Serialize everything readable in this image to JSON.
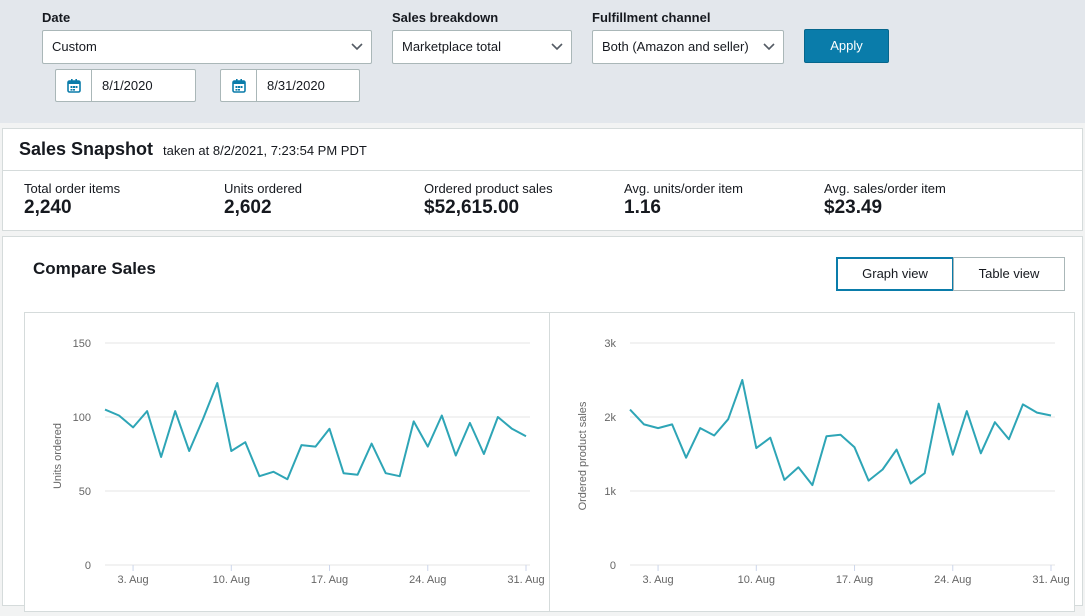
{
  "filters": {
    "date_label": "Date",
    "date_value": "Custom",
    "start_date": "8/1/2020",
    "end_date": "8/31/2020",
    "breakdown_label": "Sales breakdown",
    "breakdown_value": "Marketplace total",
    "channel_label": "Fulfillment channel",
    "channel_value": "Both (Amazon and seller)",
    "apply_label": "Apply"
  },
  "snapshot": {
    "title": "Sales Snapshot",
    "taken": "taken at 8/2/2021, 7:23:54 PM PDT",
    "metrics": [
      {
        "label": "Total order items",
        "value": "2,240"
      },
      {
        "label": "Units ordered",
        "value": "2,602"
      },
      {
        "label": "Ordered product sales",
        "value": "$52,615.00"
      },
      {
        "label": "Avg. units/order item",
        "value": "1.16"
      },
      {
        "label": "Avg. sales/order item",
        "value": "$23.49"
      }
    ]
  },
  "compare": {
    "title": "Compare Sales",
    "graph_view_label": "Graph view",
    "table_view_label": "Table view"
  },
  "chart_data": [
    {
      "type": "line",
      "ylabel": "Units ordered",
      "ylim": [
        0,
        150
      ],
      "yticks": [
        0,
        50,
        100,
        150
      ],
      "ytick_labels": [
        "0",
        "50",
        "100",
        "150"
      ],
      "xtick_days": [
        3,
        10,
        17,
        24,
        31
      ],
      "xtick_labels": [
        "3. Aug",
        "10. Aug",
        "17. Aug",
        "24. Aug",
        "31. Aug"
      ],
      "grid": true,
      "color": "#2ea5b6",
      "x": [
        1,
        2,
        3,
        4,
        5,
        6,
        7,
        8,
        9,
        10,
        11,
        12,
        13,
        14,
        15,
        16,
        17,
        18,
        19,
        20,
        21,
        22,
        23,
        24,
        25,
        26,
        27,
        28,
        29,
        30,
        31
      ],
      "values": [
        105,
        101,
        93,
        104,
        73,
        104,
        77,
        99,
        123,
        77,
        83,
        60,
        63,
        58,
        81,
        80,
        92,
        62,
        61,
        82,
        62,
        60,
        97,
        80,
        101,
        74,
        96,
        75,
        100,
        92,
        87
      ]
    },
    {
      "type": "line",
      "ylabel": "Ordered product sales",
      "ylim": [
        0,
        3000
      ],
      "yticks": [
        0,
        1000,
        2000,
        3000
      ],
      "ytick_labels": [
        "0",
        "1k",
        "2k",
        "3k"
      ],
      "xtick_days": [
        3,
        10,
        17,
        24,
        31
      ],
      "xtick_labels": [
        "3. Aug",
        "10. Aug",
        "17. Aug",
        "24. Aug",
        "31. Aug"
      ],
      "grid": true,
      "color": "#2ea5b6",
      "x": [
        1,
        2,
        3,
        4,
        5,
        6,
        7,
        8,
        9,
        10,
        11,
        12,
        13,
        14,
        15,
        16,
        17,
        18,
        19,
        20,
        21,
        22,
        23,
        24,
        25,
        26,
        27,
        28,
        29,
        30,
        31
      ],
      "values": [
        2100,
        1900,
        1850,
        1900,
        1450,
        1850,
        1750,
        1970,
        2500,
        1580,
        1720,
        1150,
        1320,
        1080,
        1740,
        1760,
        1590,
        1140,
        1290,
        1560,
        1100,
        1240,
        2180,
        1490,
        2080,
        1510,
        1930,
        1700,
        2170,
        2060,
        2020
      ]
    }
  ]
}
